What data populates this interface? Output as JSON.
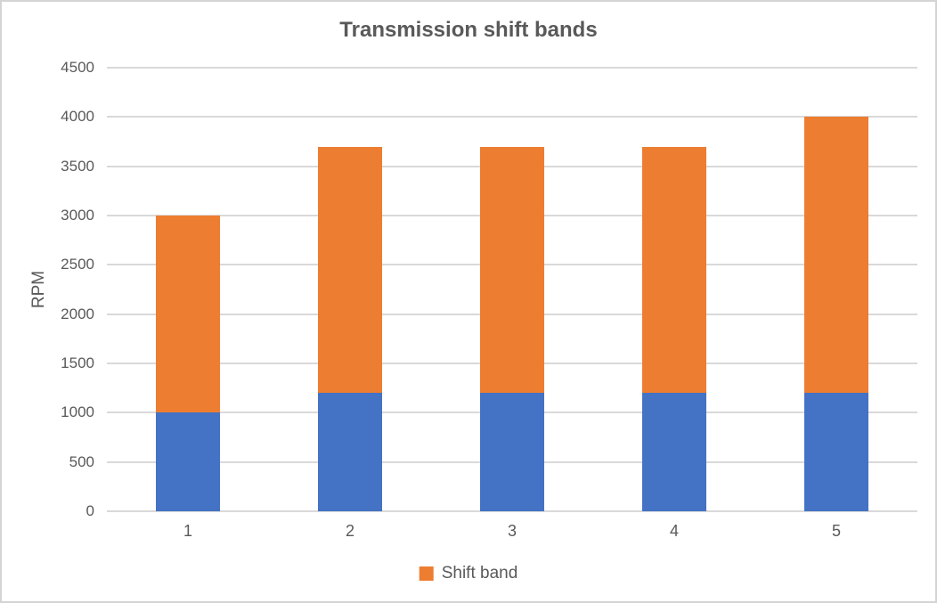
{
  "frame": {
    "background": "#FFFFFF",
    "border_color": "#D4D4D4"
  },
  "chart_data": {
    "type": "bar",
    "stacked": true,
    "title": "Transmission shift bands",
    "ylabel": "RPM",
    "xlabel": "",
    "categories": [
      "1",
      "2",
      "3",
      "4",
      "5"
    ],
    "series": [
      {
        "name": "",
        "color": "#4472C4",
        "values": [
          1000,
          1200,
          1200,
          1200,
          1200
        ],
        "show_in_legend": false
      },
      {
        "name": "Shift band",
        "color": "#ED7D31",
        "values": [
          2000,
          2500,
          2500,
          2500,
          2800
        ],
        "show_in_legend": true
      }
    ],
    "bar_totals": [
      3000,
      3700,
      3700,
      3700,
      4000
    ],
    "ylim": [
      0,
      4500
    ],
    "yticks": [
      "0",
      "500",
      "1000",
      "1500",
      "2000",
      "2500",
      "3000",
      "3500",
      "4000",
      "4500"
    ],
    "grid": true,
    "gridline_color": "#D9D9D9",
    "text_color": "#595959",
    "legend": {
      "label": "Shift band",
      "color": "#ED7D31",
      "position": "bottom"
    }
  }
}
